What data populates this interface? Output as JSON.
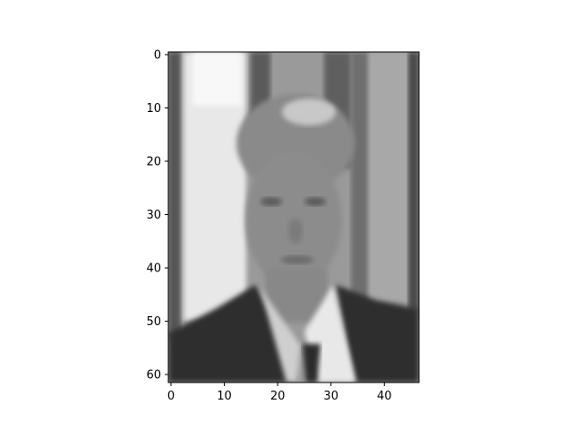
{
  "chart_data": {
    "type": "heatmap",
    "title": "",
    "xlabel": "",
    "ylabel": "",
    "colormap": "gray",
    "image_description": "grayscale low-resolution portrait of a man in a dark suit and tie",
    "shape": [
      62,
      47
    ],
    "xlim": [
      -0.5,
      46.5
    ],
    "ylim": [
      61.5,
      -0.5
    ],
    "x_ticks": [
      0,
      10,
      20,
      30,
      40
    ],
    "y_ticks": [
      0,
      10,
      20,
      30,
      40,
      50,
      60
    ],
    "x_tick_labels": [
      "0",
      "10",
      "20",
      "30",
      "40"
    ],
    "y_tick_labels": [
      "0",
      "10",
      "20",
      "30",
      "40",
      "50",
      "60"
    ]
  }
}
